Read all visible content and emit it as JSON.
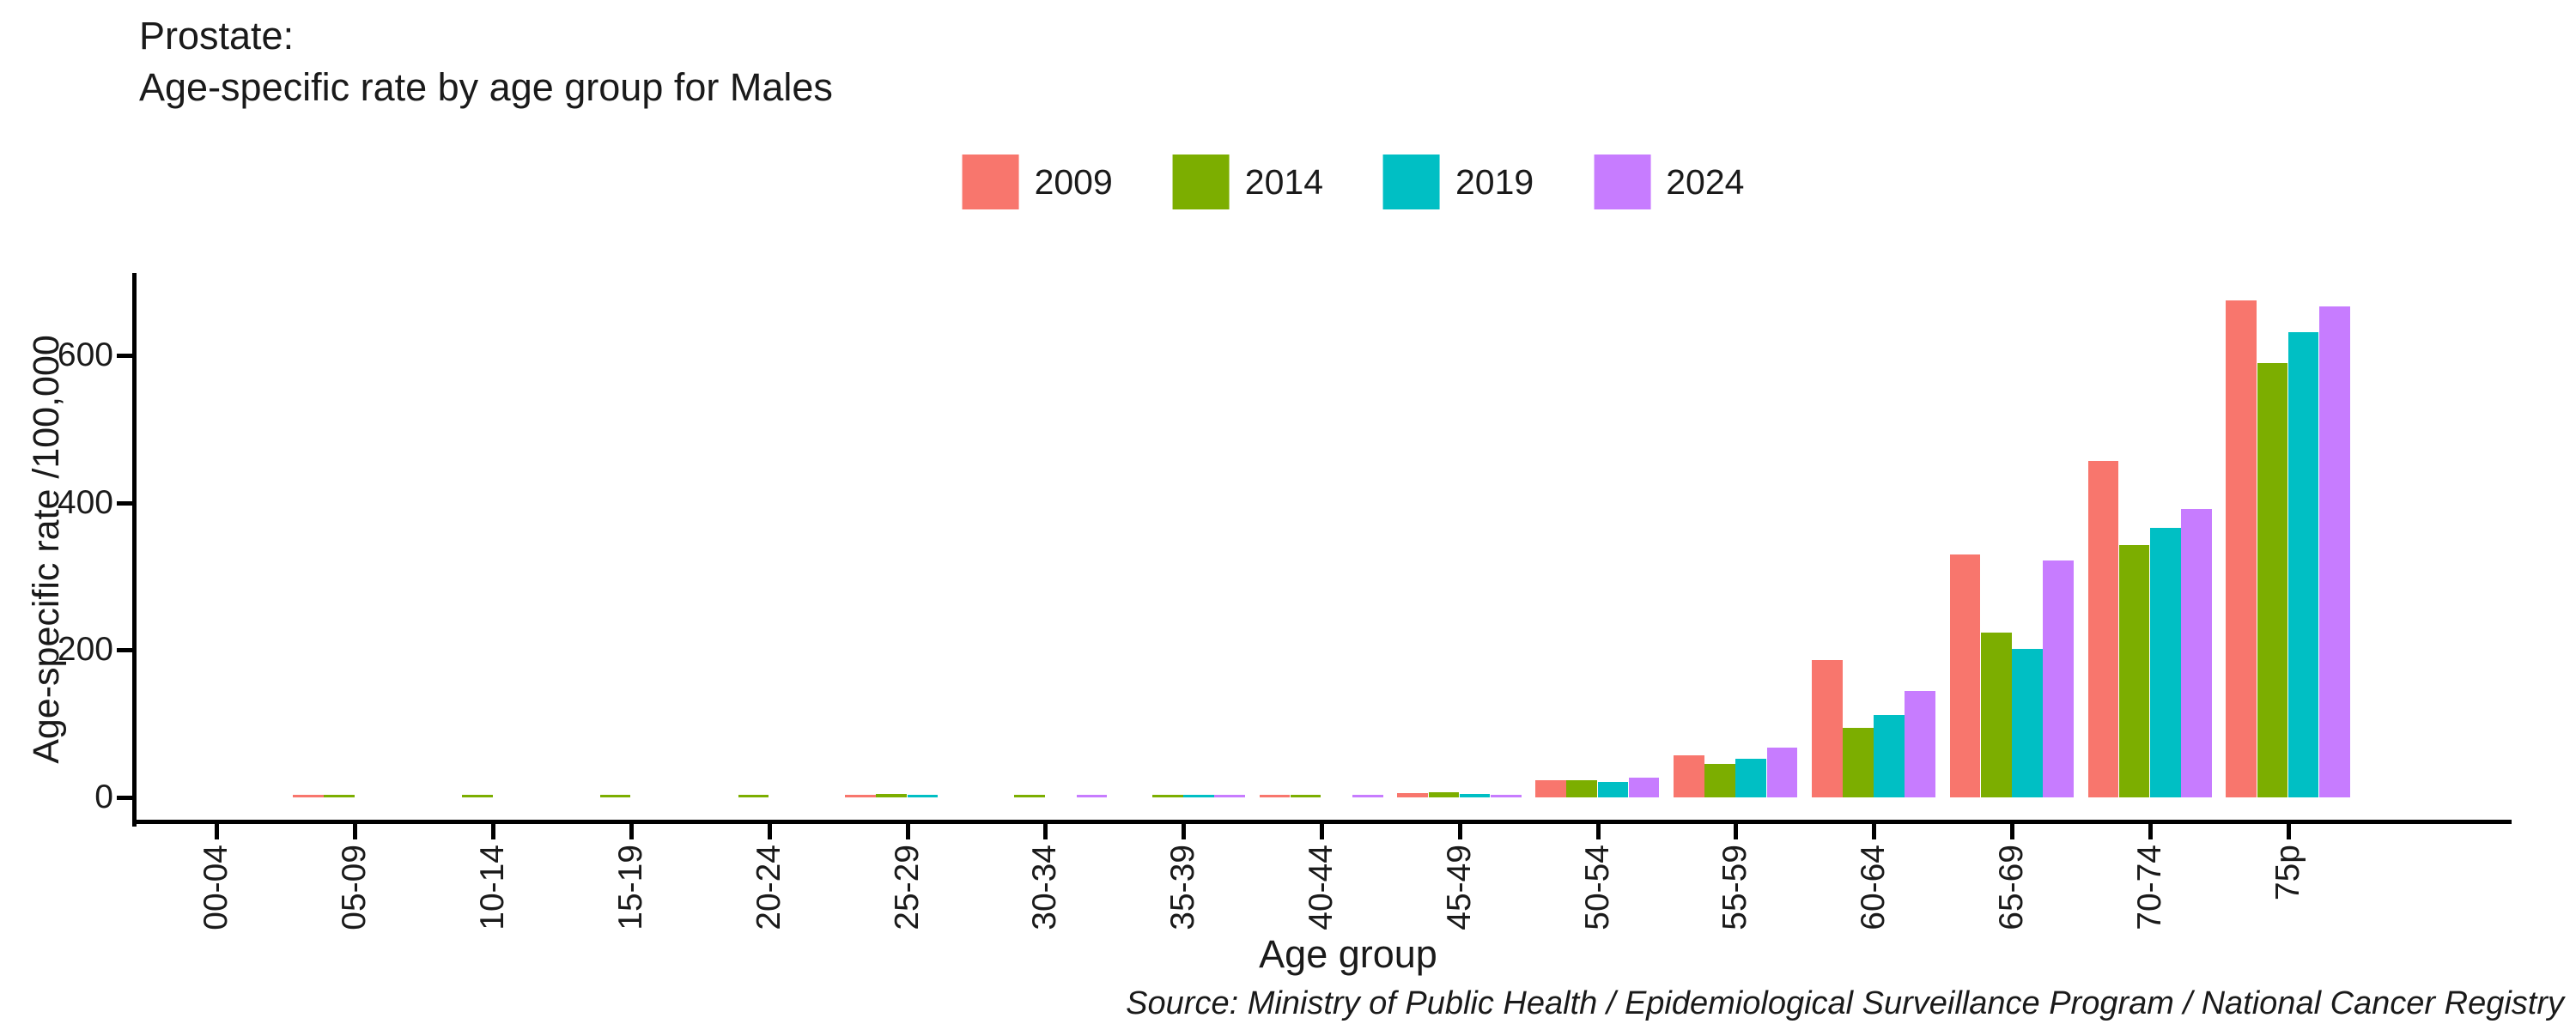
{
  "title": {
    "line1": "Prostate:",
    "line2": "Age-specific rate by age group for Males"
  },
  "legend": {
    "items": [
      {
        "label": "2009",
        "color": "#F8766D"
      },
      {
        "label": "2014",
        "color": "#7CAE00"
      },
      {
        "label": "2019",
        "color": "#00BFC4"
      },
      {
        "label": "2024",
        "color": "#C77CFF"
      }
    ]
  },
  "axes": {
    "y_title": "Age-specific rate /100,000",
    "x_title": "Age group",
    "y_ticks": [
      0,
      200,
      400,
      600
    ]
  },
  "source_note": "Source: Ministry of Public Health / Epidemiological Surveillance Program / National Cancer Registry",
  "chart_data": {
    "type": "bar",
    "title": "Prostate: Age-specific rate by age group for Males",
    "xlabel": "Age group",
    "ylabel": "Age-specific rate /100,000",
    "categories": [
      "00-04",
      "05-09",
      "10-14",
      "15-19",
      "20-24",
      "25-29",
      "30-34",
      "35-39",
      "40-44",
      "45-49",
      "50-54",
      "55-59",
      "60-64",
      "65-69",
      "70-74",
      "75p"
    ],
    "series": [
      {
        "name": "2009",
        "color": "#F8766D",
        "values": [
          0,
          2.6,
          0,
          0,
          0,
          2.6,
          0,
          0,
          3.2,
          6,
          23,
          57,
          186,
          330,
          457,
          675
        ]
      },
      {
        "name": "2014",
        "color": "#7CAE00",
        "values": [
          0,
          2.9,
          3.1,
          2.8,
          3.0,
          4.2,
          3.0,
          2.9,
          3.6,
          7,
          23,
          45,
          94,
          224,
          343,
          589
        ]
      },
      {
        "name": "2019",
        "color": "#00BFC4",
        "values": [
          0,
          0,
          0,
          0,
          0,
          2.6,
          0,
          2.8,
          0,
          4.5,
          21,
          53,
          112,
          202,
          366,
          631
        ]
      },
      {
        "name": "2024",
        "color": "#C77CFF",
        "values": [
          0,
          0,
          0,
          0,
          0,
          0,
          2.6,
          2.2,
          2.3,
          3.2,
          27,
          67,
          145,
          322,
          391,
          666
        ]
      }
    ],
    "ylim": [
      0,
      700
    ],
    "y_tick_values": [
      0,
      200,
      400,
      600
    ],
    "grid": false,
    "legend_position": "top",
    "bar_orientation": "vertical",
    "x_tick_label_rotation_deg": 90
  }
}
